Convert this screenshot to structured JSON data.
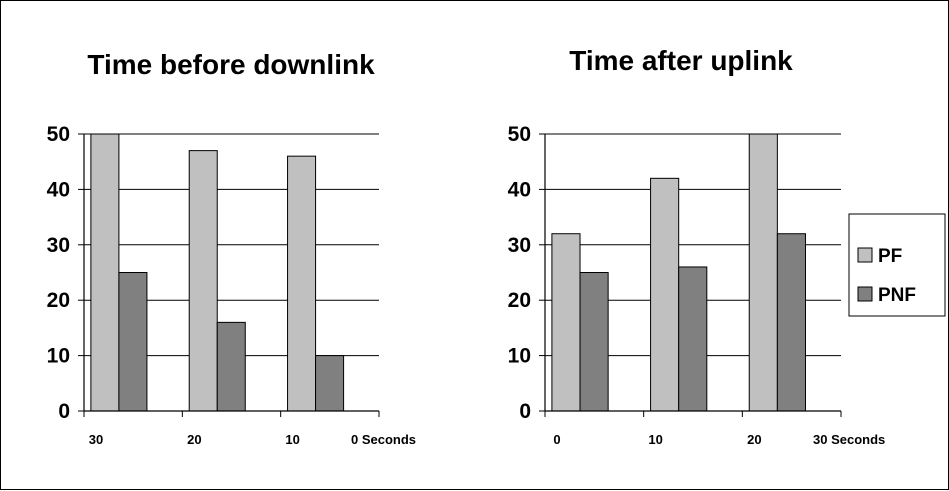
{
  "colors": {
    "PF": "#c0c0c0",
    "PNF": "#808080",
    "stroke": "#000000"
  },
  "legend": {
    "entries": [
      "PF",
      "PNF"
    ],
    "placement": "right"
  },
  "chart_data": [
    {
      "type": "bar",
      "title": "Time before downlink",
      "categories": [
        "",
        "",
        ""
      ],
      "x_tick_labels": [
        "30",
        "20",
        "10",
        "0 Seconds"
      ],
      "series": [
        {
          "name": "PF",
          "values": [
            50,
            47,
            46
          ]
        },
        {
          "name": "PNF",
          "values": [
            25,
            16,
            10
          ]
        }
      ],
      "ylim": [
        0,
        50
      ],
      "yticks": [
        0,
        10,
        20,
        30,
        40,
        50
      ],
      "grid": "horizontal"
    },
    {
      "type": "bar",
      "title": "Time after uplink",
      "categories": [
        "",
        "",
        ""
      ],
      "x_tick_labels": [
        "0",
        "10",
        "20",
        "30 Seconds"
      ],
      "series": [
        {
          "name": "PF",
          "values": [
            32,
            42,
            50
          ]
        },
        {
          "name": "PNF",
          "values": [
            25,
            26,
            32
          ]
        }
      ],
      "ylim": [
        0,
        50
      ],
      "yticks": [
        0,
        10,
        20,
        30,
        40,
        50
      ],
      "grid": "horizontal"
    }
  ]
}
